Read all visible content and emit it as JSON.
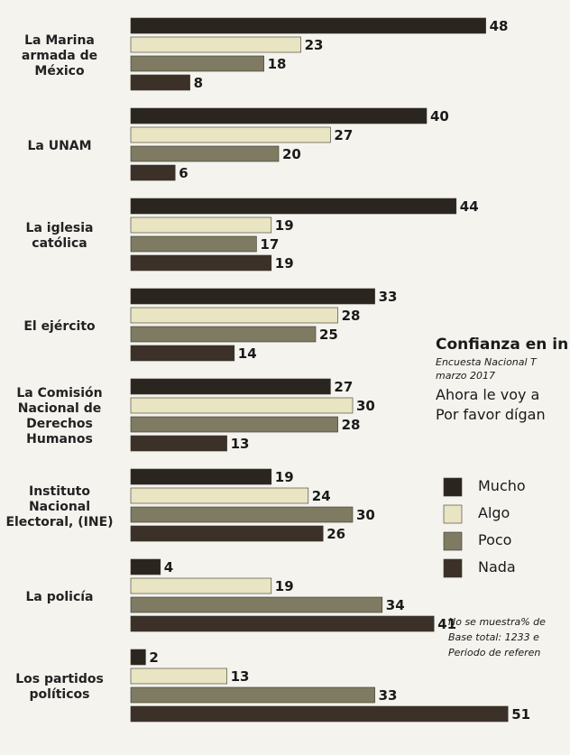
{
  "chart_data": {
    "type": "hbar",
    "title": "Confianza en in",
    "subtitle": "Encuesta Nacional T",
    "date": "marzo 2017",
    "question": [
      "Ahora le voy a",
      "Por favor dígan"
    ],
    "notes": [
      "No se muestra% de",
      "Base total: 1233 e",
      "Periodo de referen"
    ],
    "categories": [
      "La Marina armada de México",
      "La UNAM",
      "La iglesia católica",
      "El ejército",
      "La Comisión Nacional de Derechos Humanos",
      "Instituto Nacional Electoral, (INE)",
      "La policía",
      "Los partidos políticos"
    ],
    "series": [
      {
        "name": "Mucho",
        "color": "#2b2520",
        "values": [
          48,
          40,
          44,
          33,
          27,
          19,
          4,
          2
        ]
      },
      {
        "name": "Algo",
        "color": "#e9e5c3",
        "values": [
          23,
          27,
          19,
          28,
          30,
          24,
          19,
          13
        ]
      },
      {
        "name": "Poco",
        "color": "#7e7b62",
        "values": [
          18,
          20,
          17,
          25,
          28,
          30,
          34,
          33
        ]
      },
      {
        "name": "Nada",
        "color": "#3b3129",
        "values": [
          8,
          6,
          19,
          14,
          13,
          26,
          41,
          51
        ]
      }
    ]
  }
}
